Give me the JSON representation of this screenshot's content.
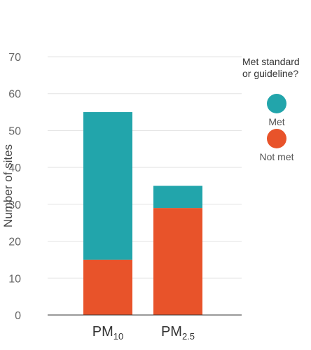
{
  "chart_data": {
    "type": "bar",
    "stacked": true,
    "categories": [
      {
        "base": "PM",
        "sub": "10"
      },
      {
        "base": "PM",
        "sub": "2.5"
      }
    ],
    "series": [
      {
        "name": "Not met",
        "color": "#E8532A",
        "values": [
          15,
          29
        ]
      },
      {
        "name": "Met",
        "color": "#22A5AB",
        "values": [
          40,
          6
        ]
      }
    ],
    "totals": [
      55,
      35
    ],
    "ylabel": "Number of sites",
    "ylim": [
      0,
      70
    ],
    "yticks": [
      0,
      10,
      20,
      30,
      40,
      50,
      60,
      70
    ],
    "grid": true,
    "legend": {
      "title": [
        "Met standard",
        "or guideline?"
      ],
      "placement": "right",
      "items": [
        {
          "label": "Met",
          "color": "#22A5AB"
        },
        {
          "label": "Not met",
          "color": "#E8532A"
        }
      ]
    }
  }
}
